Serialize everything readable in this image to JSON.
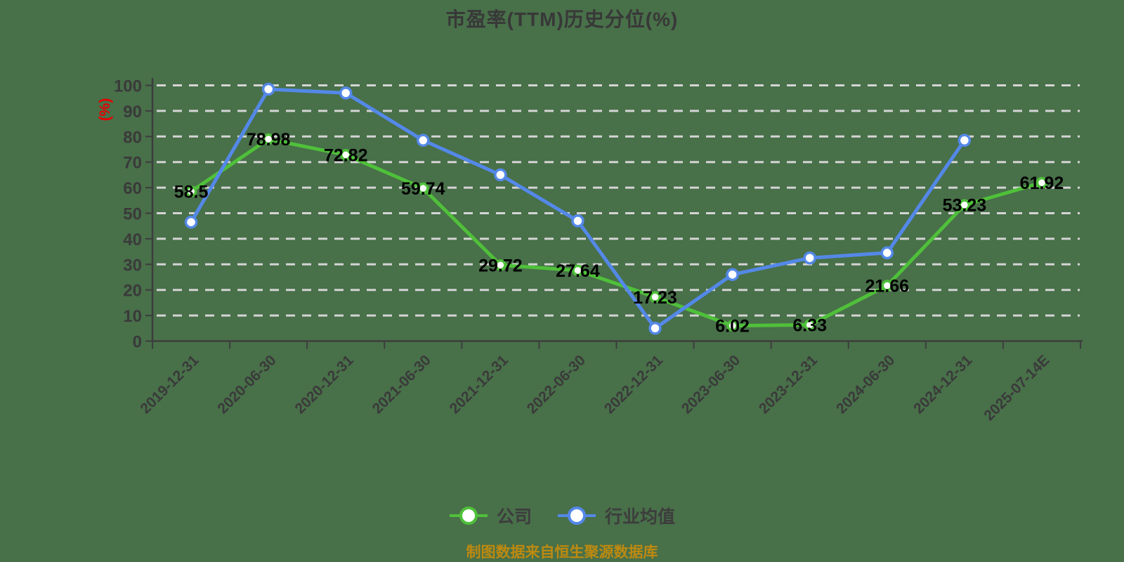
{
  "title": "市盈率(TTM)历史分位(%)",
  "y_axis_unit": "(%)",
  "source_note": "制图数据来自恒生聚源数据库",
  "colors": {
    "background": "#487049",
    "company": "#4fc03a",
    "industry": "#5488e8",
    "axis": "#3d3d3d",
    "gridline": "#d4d4d4",
    "data_label": "#000000",
    "title": "#383838",
    "tick_label": "#3a3a3a",
    "y_unit": "#e60000",
    "source": "#bd8a10",
    "marker_fill": "#ffffff"
  },
  "chart_data": {
    "type": "line",
    "title": "市盈率(TTM)历史分位(%)",
    "ylabel": "(%)",
    "ylim": [
      0,
      100
    ],
    "y_ticks": [
      0,
      10,
      20,
      30,
      40,
      50,
      60,
      70,
      80,
      90,
      100
    ],
    "grid": "horizontal dashed gridlines on",
    "legend_position": "bottom",
    "categories": [
      "2019-12-31",
      "2020-06-30",
      "2020-12-31",
      "2021-06-30",
      "2021-12-31",
      "2022-06-30",
      "2022-12-31",
      "2023-06-30",
      "2023-12-31",
      "2024-06-30",
      "2024-12-31",
      "2025-07-14E"
    ],
    "series": [
      {
        "name": "公司",
        "color": "#4fc03a",
        "data_labels": true,
        "values": [
          58.5,
          78.98,
          72.82,
          59.74,
          29.72,
          27.64,
          17.23,
          6.02,
          6.33,
          21.66,
          53.23,
          61.92
        ]
      },
      {
        "name": "行业均值",
        "color": "#5488e8",
        "data_labels": false,
        "values": [
          46.5,
          98.5,
          97,
          78.5,
          65,
          47,
          5,
          26,
          32.5,
          34.5,
          78.5,
          null
        ]
      }
    ]
  }
}
